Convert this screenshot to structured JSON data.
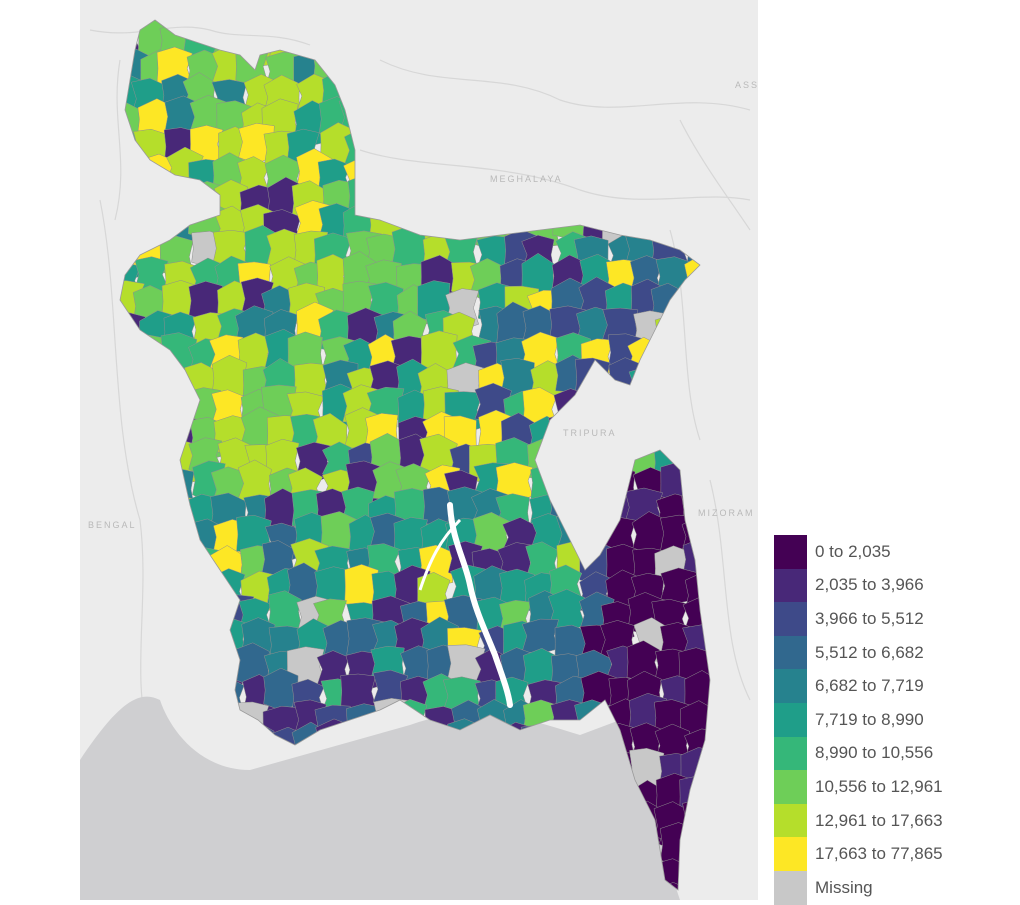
{
  "map": {
    "place_labels": [
      "ASSAM",
      "MEGHALAYA",
      "TRIPURA",
      "MIZORAM",
      "BENGAL"
    ],
    "colors": {
      "land_background": "#ececec",
      "sea": "#cfcfd1",
      "missing": "#c8c8c8"
    }
  },
  "legend": {
    "items": [
      {
        "label": "0 to 2,035",
        "color": "#440154"
      },
      {
        "label": "2,035 to 3,966",
        "color": "#482878"
      },
      {
        "label": "3,966 to 5,512",
        "color": "#3e4a89"
      },
      {
        "label": "5,512 to 6,682",
        "color": "#31688e"
      },
      {
        "label": "6,682 to 7,719",
        "color": "#26828e"
      },
      {
        "label": "7,719 to 8,990",
        "color": "#1f9e89"
      },
      {
        "label": "8,990 to 10,556",
        "color": "#35b779"
      },
      {
        "label": "10,556 to 12,961",
        "color": "#6ece58"
      },
      {
        "label": "12,961 to 17,663",
        "color": "#b5de2b"
      },
      {
        "label": "17,663 to 77,865",
        "color": "#fde725"
      },
      {
        "label": "Missing",
        "color": "#c8c8c8"
      }
    ]
  }
}
